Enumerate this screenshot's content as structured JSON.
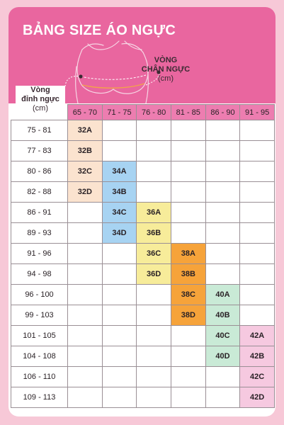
{
  "title": "BẢNG SIZE ÁO NGỰC",
  "underbust_label": {
    "line1": "VÒNG",
    "line2": "CHÂN NGỰC",
    "unit": "(cm)"
  },
  "bust_label": {
    "line1": "Vòng",
    "line2": "đỉnh ngực",
    "unit": "(cm)"
  },
  "colors": {
    "header": "#e9669f",
    "column_header": "#ed7db0",
    "size_colors": [
      "#fbe3cf",
      "#a7d3f2",
      "#f7ec9a",
      "#f6a33a",
      "#c9ead6",
      "#f6c9e0"
    ]
  },
  "columns": [
    "65 - 70",
    "71 - 75",
    "76 - 80",
    "81 - 85",
    "86 - 90",
    "91 - 95"
  ],
  "rows": [
    {
      "bust": "75 - 81",
      "cells": [
        "32A",
        "",
        "",
        "",
        "",
        ""
      ]
    },
    {
      "bust": "77 - 83",
      "cells": [
        "32B",
        "",
        "",
        "",
        "",
        ""
      ]
    },
    {
      "bust": "80 - 86",
      "cells": [
        "32C",
        "34A",
        "",
        "",
        "",
        ""
      ]
    },
    {
      "bust": "82 - 88",
      "cells": [
        "32D",
        "34B",
        "",
        "",
        "",
        ""
      ]
    },
    {
      "bust": "86 - 91",
      "cells": [
        "",
        "34C",
        "36A",
        "",
        "",
        ""
      ]
    },
    {
      "bust": "89 - 93",
      "cells": [
        "",
        "34D",
        "36B",
        "",
        "",
        ""
      ]
    },
    {
      "bust": "91 - 96",
      "cells": [
        "",
        "",
        "36C",
        "38A",
        "",
        ""
      ]
    },
    {
      "bust": "94 - 98",
      "cells": [
        "",
        "",
        "36D",
        "38B",
        "",
        ""
      ]
    },
    {
      "bust": "96 - 100",
      "cells": [
        "",
        "",
        "",
        "38C",
        "40A",
        ""
      ]
    },
    {
      "bust": "99 - 103",
      "cells": [
        "",
        "",
        "",
        "38D",
        "40B",
        ""
      ]
    },
    {
      "bust": "101 - 105",
      "cells": [
        "",
        "",
        "",
        "",
        "40C",
        "42A"
      ]
    },
    {
      "bust": "104 - 108",
      "cells": [
        "",
        "",
        "",
        "",
        "40D",
        "42B"
      ]
    },
    {
      "bust": "106 - 110",
      "cells": [
        "",
        "",
        "",
        "",
        "",
        "42C"
      ]
    },
    {
      "bust": "109 - 113",
      "cells": [
        "",
        "",
        "",
        "",
        "",
        "42D"
      ]
    }
  ]
}
